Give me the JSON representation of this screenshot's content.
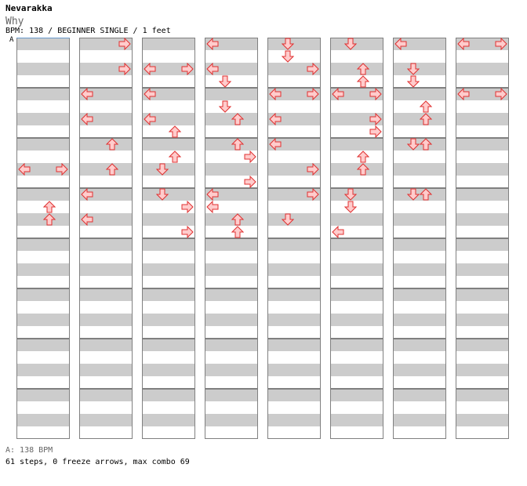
{
  "header": {
    "artist": "Nevarakka",
    "title": "Why",
    "info": "BPM: 138 / BEGINNER SINGLE / 1 feet",
    "bpm_marker": "A"
  },
  "footer": {
    "bpm_legend": "A: 138 BPM",
    "stats": "61 steps, 0 freeze arrows, max combo 69"
  },
  "colors": {
    "arrow_fill": "#ffcccc",
    "arrow_stroke": "#e03030",
    "row_shade": "#cccccc",
    "measure_border": "#808080"
  },
  "chart_data": {
    "type": "step-chart",
    "columns": 8,
    "measures_per_column": 8,
    "rows_per_measure": 4,
    "lanes": [
      "left",
      "down",
      "up",
      "right"
    ],
    "notes": [
      {
        "col": 0,
        "row": 10,
        "lane": "left"
      },
      {
        "col": 0,
        "row": 10,
        "lane": "right"
      },
      {
        "col": 0,
        "row": 13,
        "lane": "up"
      },
      {
        "col": 0,
        "row": 14,
        "lane": "up"
      },
      {
        "col": 1,
        "row": 0,
        "lane": "right"
      },
      {
        "col": 1,
        "row": 2,
        "lane": "right"
      },
      {
        "col": 1,
        "row": 4,
        "lane": "left"
      },
      {
        "col": 1,
        "row": 6,
        "lane": "left"
      },
      {
        "col": 1,
        "row": 8,
        "lane": "up"
      },
      {
        "col": 1,
        "row": 10,
        "lane": "up"
      },
      {
        "col": 1,
        "row": 12,
        "lane": "left"
      },
      {
        "col": 1,
        "row": 14,
        "lane": "left"
      },
      {
        "col": 2,
        "row": 2,
        "lane": "left"
      },
      {
        "col": 2,
        "row": 2,
        "lane": "right"
      },
      {
        "col": 2,
        "row": 4,
        "lane": "left"
      },
      {
        "col": 2,
        "row": 6,
        "lane": "left"
      },
      {
        "col": 2,
        "row": 7,
        "lane": "up"
      },
      {
        "col": 2,
        "row": 9,
        "lane": "up"
      },
      {
        "col": 2,
        "row": 10,
        "lane": "down"
      },
      {
        "col": 2,
        "row": 12,
        "lane": "down"
      },
      {
        "col": 2,
        "row": 13,
        "lane": "right"
      },
      {
        "col": 2,
        "row": 15,
        "lane": "right"
      },
      {
        "col": 3,
        "row": 0,
        "lane": "left"
      },
      {
        "col": 3,
        "row": 2,
        "lane": "left"
      },
      {
        "col": 3,
        "row": 3,
        "lane": "down"
      },
      {
        "col": 3,
        "row": 5,
        "lane": "down"
      },
      {
        "col": 3,
        "row": 6,
        "lane": "up"
      },
      {
        "col": 3,
        "row": 8,
        "lane": "up"
      },
      {
        "col": 3,
        "row": 9,
        "lane": "right"
      },
      {
        "col": 3,
        "row": 11,
        "lane": "right"
      },
      {
        "col": 3,
        "row": 12,
        "lane": "left"
      },
      {
        "col": 3,
        "row": 13,
        "lane": "left"
      },
      {
        "col": 3,
        "row": 14,
        "lane": "up"
      },
      {
        "col": 3,
        "row": 15,
        "lane": "up"
      },
      {
        "col": 4,
        "row": 0,
        "lane": "down"
      },
      {
        "col": 4,
        "row": 1,
        "lane": "down"
      },
      {
        "col": 4,
        "row": 2,
        "lane": "right"
      },
      {
        "col": 4,
        "row": 4,
        "lane": "left"
      },
      {
        "col": 4,
        "row": 4,
        "lane": "right"
      },
      {
        "col": 4,
        "row": 6,
        "lane": "left"
      },
      {
        "col": 4,
        "row": 8,
        "lane": "left"
      },
      {
        "col": 4,
        "row": 10,
        "lane": "right"
      },
      {
        "col": 4,
        "row": 12,
        "lane": "right"
      },
      {
        "col": 4,
        "row": 14,
        "lane": "down"
      },
      {
        "col": 5,
        "row": 0,
        "lane": "down"
      },
      {
        "col": 5,
        "row": 2,
        "lane": "up"
      },
      {
        "col": 5,
        "row": 3,
        "lane": "up"
      },
      {
        "col": 5,
        "row": 4,
        "lane": "left"
      },
      {
        "col": 5,
        "row": 4,
        "lane": "right"
      },
      {
        "col": 5,
        "row": 6,
        "lane": "right"
      },
      {
        "col": 5,
        "row": 7,
        "lane": "right"
      },
      {
        "col": 5,
        "row": 9,
        "lane": "up"
      },
      {
        "col": 5,
        "row": 10,
        "lane": "up"
      },
      {
        "col": 5,
        "row": 12,
        "lane": "down"
      },
      {
        "col": 5,
        "row": 13,
        "lane": "down"
      },
      {
        "col": 5,
        "row": 15,
        "lane": "left"
      },
      {
        "col": 6,
        "row": 0,
        "lane": "left"
      },
      {
        "col": 6,
        "row": 2,
        "lane": "down"
      },
      {
        "col": 6,
        "row": 3,
        "lane": "down"
      },
      {
        "col": 6,
        "row": 5,
        "lane": "up"
      },
      {
        "col": 6,
        "row": 6,
        "lane": "up"
      },
      {
        "col": 6,
        "row": 8,
        "lane": "down"
      },
      {
        "col": 6,
        "row": 8,
        "lane": "up"
      },
      {
        "col": 6,
        "row": 12,
        "lane": "down"
      },
      {
        "col": 6,
        "row": 12,
        "lane": "up"
      },
      {
        "col": 7,
        "row": 0,
        "lane": "left"
      },
      {
        "col": 7,
        "row": 0,
        "lane": "right"
      },
      {
        "col": 7,
        "row": 4,
        "lane": "left"
      },
      {
        "col": 7,
        "row": 4,
        "lane": "right"
      }
    ]
  }
}
